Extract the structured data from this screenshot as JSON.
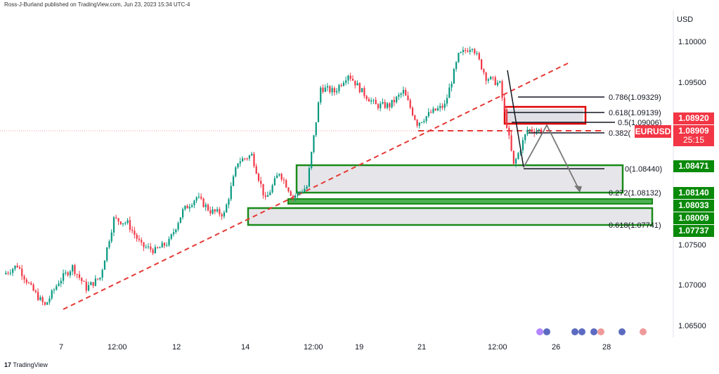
{
  "header": {
    "byline": "Ross-J-Burland published on TradingView.com, Jun 23, 2023 15:34 UTC-4"
  },
  "symbol": "EURUSD",
  "price_axis": {
    "currency": "USD",
    "ticks": [
      "1.10000",
      "1.09500",
      "1.07500",
      "1.07000",
      "1.06500"
    ]
  },
  "time_axis": {
    "ticks": [
      "7",
      "12:00",
      "12",
      "14",
      "12:00",
      "19",
      "21",
      "12:00",
      "26",
      "28"
    ]
  },
  "price_tags": [
    {
      "value": "1.08920",
      "color": "#f23645"
    },
    {
      "value": "1.08909",
      "sub": "25:15",
      "color": "#f23645"
    },
    {
      "value": "1.08471",
      "color": "#089981"
    },
    {
      "value": "1.08140",
      "color": "#089981"
    },
    {
      "value": "1.08033",
      "color": "#089981"
    },
    {
      "value": "1.08009",
      "color": "#089981"
    },
    {
      "value": "1.07737",
      "color": "#089981"
    }
  ],
  "fib_levels": [
    "0.786(1.09329)",
    "0.618(1.09139)",
    "0.5(1.09006)",
    "0.382(",
    "0(1.08440)",
    "0.272(1.08132)",
    "0.618(1.07741)"
  ],
  "chart_data": {
    "type": "candlestick",
    "symbol": "EURUSD",
    "ylim": [
      1.0635,
      1.1035
    ],
    "price_path": [
      1.0714,
      1.0725,
      1.0697,
      1.0675,
      1.0705,
      1.0723,
      1.0697,
      1.071,
      1.0782,
      1.0777,
      1.0749,
      1.0743,
      1.0754,
      1.0792,
      1.0809,
      1.0792,
      1.0788,
      1.0853,
      1.0861,
      1.0805,
      1.084,
      1.0809,
      1.0822,
      1.0944,
      1.0939,
      1.0961,
      1.0939,
      1.0922,
      1.0922,
      1.0939,
      1.09,
      1.0913,
      1.0922,
      1.0983,
      1.0996,
      1.0957,
      1.0948,
      1.0848,
      1.0892,
      1.0891
    ],
    "colors": {
      "up": "#089981",
      "down": "#f23645"
    }
  },
  "footer": {
    "brand": "TradingView"
  }
}
